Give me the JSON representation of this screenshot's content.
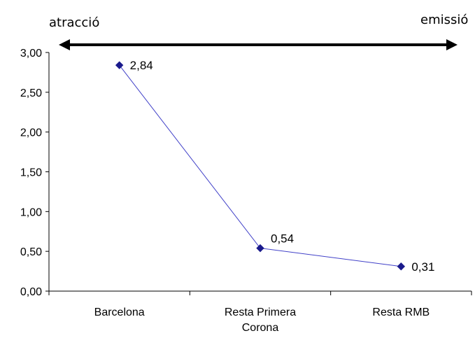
{
  "chart_data": {
    "type": "line",
    "categories": [
      "Barcelona",
      "Resta Primera Corona",
      "Resta RMB"
    ],
    "series": [
      {
        "values": [
          2.84,
          0.54,
          0.31
        ],
        "data_labels": [
          "2,84",
          "0,54",
          "0,31"
        ]
      }
    ],
    "ylim": [
      0,
      3
    ],
    "yticks": [
      0,
      0.5,
      1,
      1.5,
      2,
      2.5,
      3
    ],
    "ytick_labels": [
      "0,00",
      "0,50",
      "1,00",
      "1,50",
      "2,00",
      "2,50",
      "3,00"
    ],
    "xlabel": "",
    "ylabel": "",
    "grid": false,
    "legend": "none",
    "colors": {
      "line": "#4040c8",
      "marker": "#1a1a8c",
      "axis": "#000000"
    },
    "annotation": {
      "type": "double-headed arrow",
      "left_label": "atracció",
      "right_label": "emissió"
    }
  }
}
